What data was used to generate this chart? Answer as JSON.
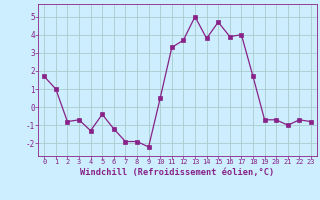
{
  "x": [
    0,
    1,
    2,
    3,
    4,
    5,
    6,
    7,
    8,
    9,
    10,
    11,
    12,
    13,
    14,
    15,
    16,
    17,
    18,
    19,
    20,
    21,
    22,
    23
  ],
  "y": [
    1.7,
    1.0,
    -0.8,
    -0.7,
    -1.3,
    -0.4,
    -1.2,
    -1.9,
    -1.9,
    -2.2,
    0.5,
    3.3,
    3.7,
    5.0,
    3.8,
    4.7,
    3.9,
    4.0,
    1.7,
    -0.7,
    -0.7,
    -1.0,
    -0.7,
    -0.8
  ],
  "line_color": "#882288",
  "marker": "s",
  "marker_size": 2.2,
  "bg_color": "#cceeff",
  "grid_color": "#aacccc",
  "xlabel": "Windchill (Refroidissement éolien,°C)",
  "xlim": [
    -0.5,
    23.5
  ],
  "ylim": [
    -2.7,
    5.7
  ],
  "xticks": [
    0,
    1,
    2,
    3,
    4,
    5,
    6,
    7,
    8,
    9,
    10,
    11,
    12,
    13,
    14,
    15,
    16,
    17,
    18,
    19,
    20,
    21,
    22,
    23
  ],
  "yticks": [
    -2,
    -1,
    0,
    1,
    2,
    3,
    4,
    5
  ],
  "text_color": "#882288",
  "spine_color": "#882288"
}
